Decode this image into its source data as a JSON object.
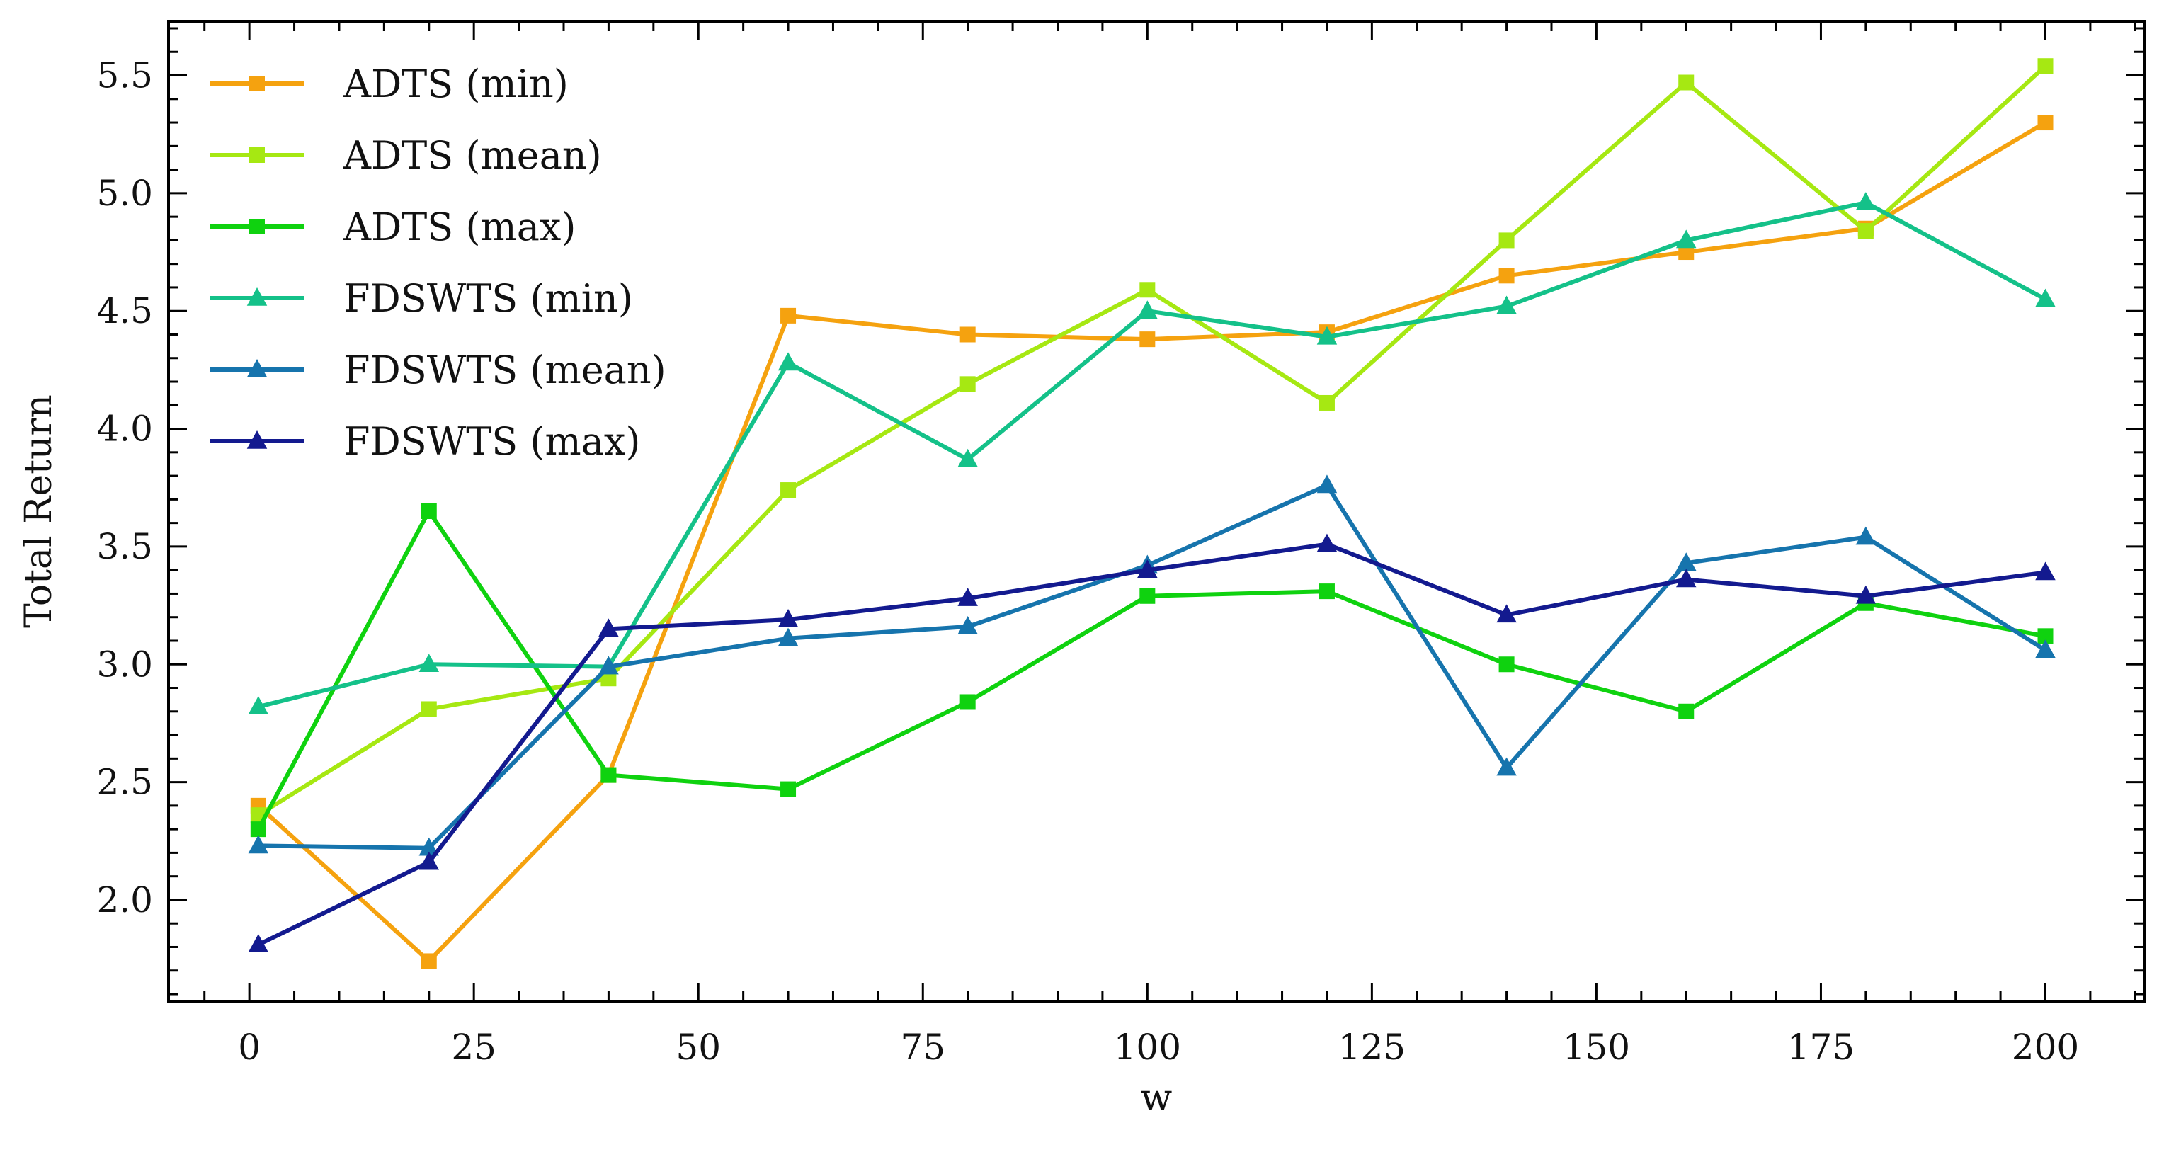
{
  "chart_data": {
    "type": "line",
    "xlabel": "w",
    "ylabel": "Total Return",
    "xlim": [
      -9,
      211
    ],
    "ylim": [
      1.57,
      5.73
    ],
    "xticks": [
      0,
      25,
      50,
      75,
      100,
      125,
      150,
      175,
      200
    ],
    "yticks": [
      2.0,
      2.5,
      3.0,
      3.5,
      4.0,
      4.5,
      5.0,
      5.5
    ],
    "x": [
      1,
      20,
      40,
      60,
      80,
      100,
      120,
      140,
      160,
      180,
      200
    ],
    "legend_position": "upper-left",
    "grid": false,
    "series": [
      {
        "name": "ADTS (min)",
        "color": "#f5a20f",
        "marker": "square",
        "values": [
          2.4,
          1.74,
          2.53,
          4.48,
          4.4,
          4.38,
          4.41,
          4.65,
          4.75,
          4.85,
          5.3
        ]
      },
      {
        "name": "ADTS (mean)",
        "color": "#a6e812",
        "marker": "square",
        "values": [
          2.36,
          2.81,
          2.94,
          3.74,
          4.19,
          4.59,
          4.11,
          4.8,
          5.47,
          4.84,
          5.54
        ]
      },
      {
        "name": "ADTS (max)",
        "color": "#0fd20f",
        "marker": "square",
        "values": [
          2.3,
          3.65,
          2.53,
          2.47,
          2.84,
          3.29,
          3.31,
          3.0,
          2.8,
          3.26,
          3.12
        ]
      },
      {
        "name": "FDSWTS (min)",
        "color": "#14c189",
        "marker": "triangle",
        "values": [
          2.82,
          3.0,
          2.99,
          4.28,
          3.87,
          4.5,
          4.39,
          4.52,
          4.8,
          4.96,
          4.55
        ]
      },
      {
        "name": "FDSWTS (mean)",
        "color": "#1674ad",
        "marker": "triangle",
        "values": [
          2.23,
          2.22,
          2.99,
          3.11,
          3.16,
          3.42,
          3.76,
          2.56,
          3.43,
          3.54,
          3.06
        ]
      },
      {
        "name": "FDSWTS (max)",
        "color": "#131a8f",
        "marker": "triangle",
        "values": [
          1.81,
          2.16,
          3.15,
          3.19,
          3.28,
          3.4,
          3.51,
          3.21,
          3.36,
          3.29,
          3.39
        ]
      }
    ]
  }
}
